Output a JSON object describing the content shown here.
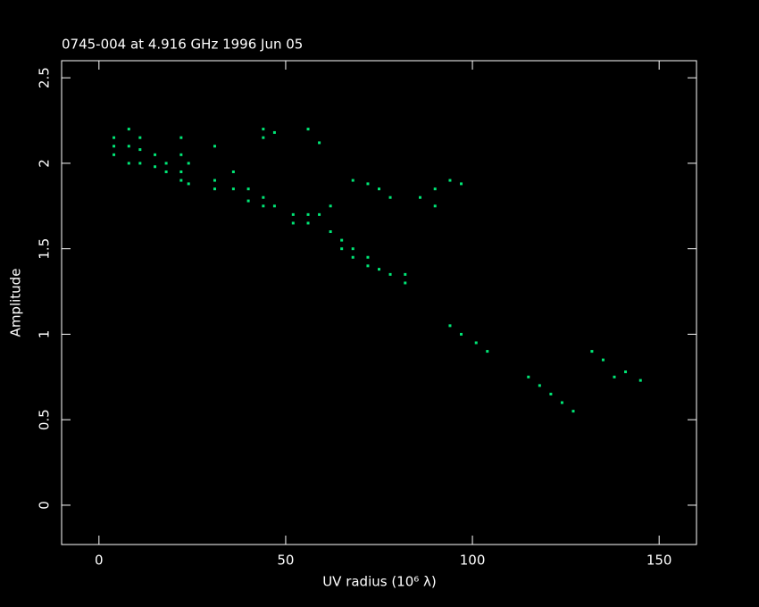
{
  "chart_data": {
    "type": "scatter",
    "title": "0745-004 at 4.916 GHz 1996 Jun 05",
    "x_label": "UV radius  (10⁶ λ)",
    "y_label": "Amplitude",
    "xlim": [
      -10,
      160
    ],
    "xticks": [
      0,
      50,
      100,
      150
    ],
    "ylim": [
      -0.23,
      2.6
    ],
    "yticks": [
      0,
      0.5,
      1,
      1.5,
      2,
      2.5
    ],
    "series": [
      {
        "color": "#00e676",
        "x": [
          4,
          4,
          4,
          8,
          8,
          8,
          11,
          11,
          11,
          15,
          15,
          18,
          18,
          22,
          22,
          22,
          22,
          24,
          24,
          31,
          31,
          31,
          36,
          36,
          40,
          40,
          44,
          44,
          44,
          44,
          47,
          47,
          52,
          52,
          56,
          56,
          56,
          59,
          59,
          62,
          62,
          65,
          65,
          68,
          68,
          68,
          72,
          72,
          72,
          75,
          75,
          78,
          78,
          82,
          82,
          86,
          90,
          90,
          94,
          94,
          97,
          97,
          101,
          104,
          115,
          118,
          121,
          124,
          127,
          132,
          135,
          138,
          141,
          145
        ],
        "y": [
          2.1,
          2.05,
          2.15,
          2.1,
          2.0,
          2.2,
          2.08,
          2.15,
          2.0,
          2.05,
          1.98,
          2.0,
          1.95,
          2.05,
          2.15,
          1.95,
          1.9,
          2.0,
          1.88,
          2.1,
          1.9,
          1.85,
          1.95,
          1.85,
          1.85,
          1.78,
          1.8,
          1.75,
          2.2,
          2.15,
          1.75,
          2.18,
          1.7,
          1.65,
          1.65,
          1.7,
          2.2,
          1.7,
          2.12,
          1.6,
          1.75,
          1.55,
          1.5,
          1.9,
          1.5,
          1.45,
          1.88,
          1.45,
          1.4,
          1.85,
          1.38,
          1.8,
          1.35,
          1.3,
          1.35,
          1.8,
          1.85,
          1.75,
          1.9,
          1.05,
          1.88,
          1.0,
          0.95,
          0.9,
          0.75,
          0.7,
          0.65,
          0.6,
          0.55,
          0.9,
          0.85,
          0.75,
          0.78,
          0.73
        ]
      }
    ]
  }
}
